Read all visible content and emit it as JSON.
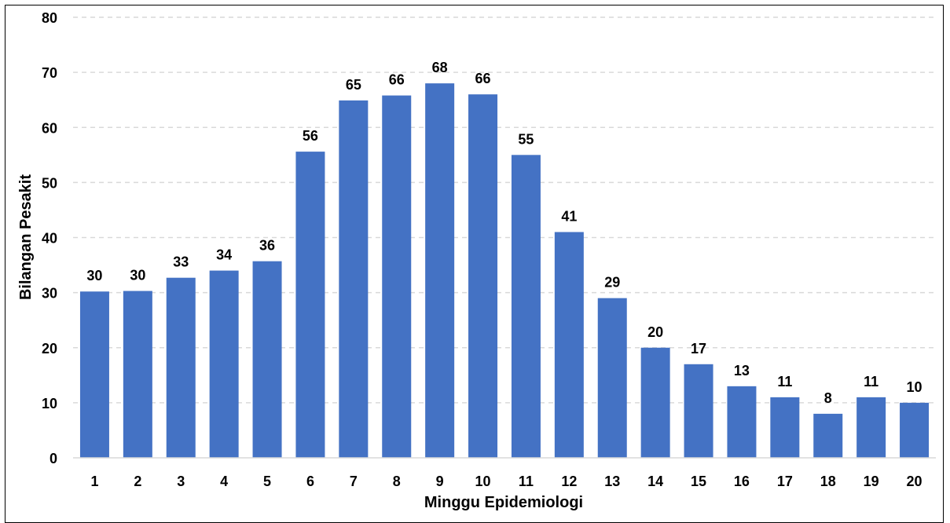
{
  "chart_data": {
    "type": "bar",
    "title": "",
    "xlabel": "Minggu Epidemiologi",
    "ylabel": "Bilangan  Pesakit",
    "categories": [
      "1",
      "2",
      "3",
      "4",
      "5",
      "6",
      "7",
      "8",
      "9",
      "10",
      "11",
      "12",
      "13",
      "14",
      "15",
      "16",
      "17",
      "18",
      "19",
      "20"
    ],
    "values": [
      30.2,
      30.3,
      32.7,
      34,
      35.7,
      55.6,
      64.9,
      65.8,
      68,
      66,
      55,
      41,
      29,
      20,
      17,
      13,
      11,
      8,
      11,
      10
    ],
    "data_labels": [
      "30",
      "30",
      "33",
      "34",
      "36",
      "56",
      "65",
      "66",
      "68",
      "66",
      "55",
      "41",
      "29",
      "20",
      "17",
      "13",
      "11",
      "8",
      "11",
      "10"
    ],
    "y_ticks": [
      "0",
      "10",
      "20",
      "30",
      "40",
      "50",
      "60",
      "70",
      "80"
    ],
    "ylim": [
      0,
      80
    ],
    "grid": "horizontal-dashed",
    "legend": "none",
    "colors": {
      "bar": "#4472C4",
      "grid": "#D9D9D9",
      "text": "#000000"
    }
  }
}
